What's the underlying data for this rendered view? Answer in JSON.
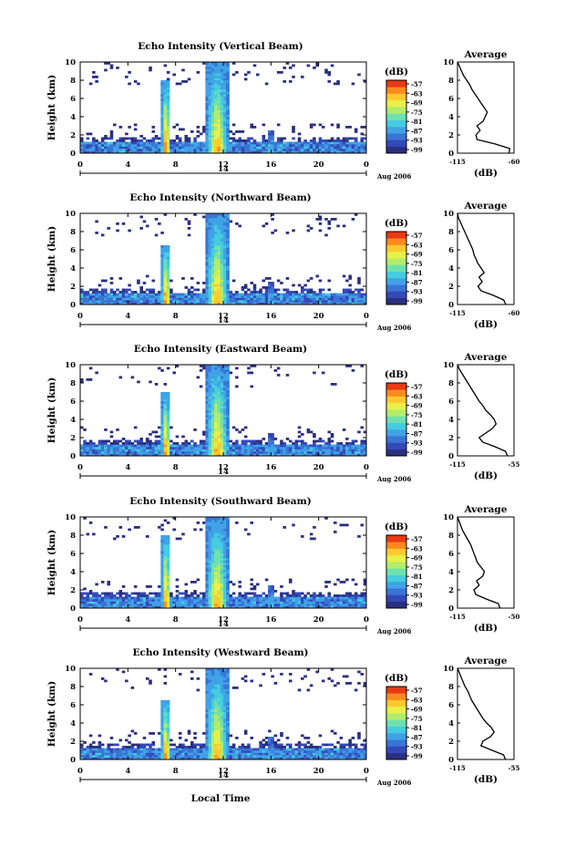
{
  "colorbar": {
    "unit_label": "(dB)",
    "ticks": [
      "-57",
      "-63",
      "-69",
      "-75",
      "-81",
      "-87",
      "-93",
      "-99"
    ],
    "colors": [
      "#2a2f7f",
      "#3448b8",
      "#3a74d6",
      "#3fa3e6",
      "#45cce0",
      "#6fe0b0",
      "#b2ec6c",
      "#e8f04a",
      "#ffc92e",
      "#ff8a1e",
      "#e83a14"
    ]
  },
  "xlabel": "Local Time",
  "panels": [
    {
      "title": "Echo Intensity (Vertical Beam)",
      "ylabel": "Height (km)",
      "xticks": [
        "0",
        "4",
        "8",
        "12",
        "16",
        "20",
        "0"
      ],
      "yticks": [
        "0",
        "2",
        "4",
        "6",
        "8",
        "10"
      ],
      "date_marker": "14",
      "date_label": "Aug 2006",
      "avg_title": "Average",
      "avg_xlabel": "(dB)",
      "avg_xticks": [
        "-115",
        "-60"
      ],
      "avg_yticks": [
        "0",
        "2",
        "4",
        "6",
        "8",
        "10"
      ]
    },
    {
      "title": "Echo Intensity (Northward Beam)",
      "ylabel": "Height (km)",
      "xticks": [
        "0",
        "4",
        "8",
        "12",
        "16",
        "20",
        "0"
      ],
      "yticks": [
        "0",
        "2",
        "4",
        "6",
        "8",
        "10"
      ],
      "date_marker": "14",
      "date_label": "Aug 2006",
      "avg_title": "Average",
      "avg_xlabel": "(dB)",
      "avg_xticks": [
        "-115",
        "-60"
      ],
      "avg_yticks": [
        "0",
        "2",
        "4",
        "6",
        "8",
        "10"
      ]
    },
    {
      "title": "Echo Intensity (Eastward Beam)",
      "ylabel": "Height (km)",
      "xticks": [
        "0",
        "4",
        "8",
        "12",
        "16",
        "20",
        "0"
      ],
      "yticks": [
        "0",
        "2",
        "4",
        "6",
        "8",
        "10"
      ],
      "date_marker": "14",
      "date_label": "Aug 2006",
      "avg_title": "Average",
      "avg_xlabel": "(dB)",
      "avg_xticks": [
        "-115",
        "-55"
      ],
      "avg_yticks": [
        "0",
        "2",
        "4",
        "6",
        "8",
        "10"
      ]
    },
    {
      "title": "Echo Intensity (Southward Beam)",
      "ylabel": "Height (km)",
      "xticks": [
        "0",
        "4",
        "8",
        "12",
        "16",
        "20",
        "0"
      ],
      "yticks": [
        "0",
        "2",
        "4",
        "6",
        "8",
        "10"
      ],
      "date_marker": "14",
      "date_label": "Aug 2006",
      "avg_title": "Average",
      "avg_xlabel": "(dB)",
      "avg_xticks": [
        "-115",
        "-50"
      ],
      "avg_yticks": [
        "0",
        "2",
        "4",
        "6",
        "8",
        "10"
      ]
    },
    {
      "title": "Echo Intensity (Westward Beam)",
      "ylabel": "Height (km)",
      "xticks": [
        "0",
        "4",
        "8",
        "12",
        "16",
        "20",
        "0"
      ],
      "yticks": [
        "0",
        "2",
        "4",
        "6",
        "8",
        "10"
      ],
      "date_marker": "14",
      "date_label": "Aug 2006",
      "avg_title": "Average",
      "avg_xlabel": "(dB)",
      "avg_xticks": [
        "-115",
        "-55"
      ],
      "avg_yticks": [
        "0",
        "2",
        "4",
        "6",
        "8",
        "10"
      ]
    }
  ],
  "chart_data": [
    {
      "type": "heatmap",
      "title": "Echo Intensity (Vertical Beam)",
      "xlabel": "",
      "ylabel": "Height (km)",
      "xlim": [
        0,
        24
      ],
      "ylim": [
        0,
        10
      ],
      "clim": [
        -99,
        -57
      ],
      "features": [
        {
          "x_hour": 7.2,
          "top_km": 8.0,
          "peak_db": -57
        },
        {
          "x_hour": 11.5,
          "top_km": 10.0,
          "peak_db": -63
        },
        {
          "x_hour": 16.0,
          "top_km": 2.5,
          "peak_db": -81
        }
      ],
      "average_profile": {
        "xlim": [
          -115,
          -60
        ],
        "height_km": [
          0,
          0.5,
          1,
          1.5,
          2,
          2.5,
          3,
          3.5,
          4,
          4.5,
          5,
          5.5,
          6,
          6.5,
          7,
          7.5,
          8,
          8.5,
          9,
          9.5,
          10
        ],
        "db": [
          -65,
          -64,
          -78,
          -96,
          -97,
          -93,
          -96,
          -90,
          -88,
          -86,
          -89,
          -92,
          -95,
          -98,
          -101,
          -103,
          -106,
          -109,
          -111,
          -113,
          -115
        ]
      }
    },
    {
      "type": "heatmap",
      "title": "Echo Intensity (Northward Beam)",
      "xlabel": "",
      "ylabel": "Height (km)",
      "xlim": [
        0,
        24
      ],
      "ylim": [
        0,
        10
      ],
      "clim": [
        -99,
        -57
      ],
      "features": [
        {
          "x_hour": 7.2,
          "top_km": 6.5,
          "peak_db": -57
        },
        {
          "x_hour": 11.5,
          "top_km": 10.0,
          "peak_db": -63
        },
        {
          "x_hour": 16.0,
          "top_km": 2.5,
          "peak_db": -81
        }
      ],
      "average_profile": {
        "xlim": [
          -115,
          -60
        ],
        "height_km": [
          0,
          0.5,
          1,
          1.5,
          2,
          2.5,
          3,
          3.5,
          4,
          4.5,
          5,
          5.5,
          6,
          6.5,
          7,
          7.5,
          8,
          8.5,
          9,
          9.5,
          10
        ],
        "db": [
          -68,
          -70,
          -80,
          -92,
          -95,
          -91,
          -94,
          -89,
          -92,
          -95,
          -97,
          -99,
          -100,
          -102,
          -104,
          -106,
          -108,
          -110,
          -112,
          -114,
          -115
        ]
      }
    },
    {
      "type": "heatmap",
      "title": "Echo Intensity (Eastward Beam)",
      "xlabel": "",
      "ylabel": "Height (km)",
      "xlim": [
        0,
        24
      ],
      "ylim": [
        0,
        10
      ],
      "clim": [
        -99,
        -57
      ],
      "features": [
        {
          "x_hour": 7.2,
          "top_km": 7.0,
          "peak_db": -57
        },
        {
          "x_hour": 11.5,
          "top_km": 10.0,
          "peak_db": -63
        },
        {
          "x_hour": 16.0,
          "top_km": 2.5,
          "peak_db": -81
        }
      ],
      "average_profile": {
        "xlim": [
          -115,
          -55
        ],
        "height_km": [
          0,
          0.5,
          1,
          1.5,
          2,
          2.5,
          3,
          3.5,
          4,
          4.5,
          5,
          5.5,
          6,
          6.5,
          7,
          7.5,
          8,
          8.5,
          9,
          9.5,
          10
        ],
        "db": [
          -62,
          -64,
          -75,
          -88,
          -92,
          -85,
          -78,
          -74,
          -76,
          -80,
          -85,
          -88,
          -92,
          -95,
          -98,
          -101,
          -104,
          -107,
          -110,
          -113,
          -115
        ]
      }
    },
    {
      "type": "heatmap",
      "title": "Echo Intensity (Southward Beam)",
      "xlabel": "",
      "ylabel": "Height (km)",
      "xlim": [
        0,
        24
      ],
      "ylim": [
        0,
        10
      ],
      "clim": [
        -99,
        -57
      ],
      "features": [
        {
          "x_hour": 7.2,
          "top_km": 8.0,
          "peak_db": -57
        },
        {
          "x_hour": 11.5,
          "top_km": 10.0,
          "peak_db": -63
        },
        {
          "x_hour": 16.0,
          "top_km": 2.5,
          "peak_db": -81
        }
      ],
      "average_profile": {
        "xlim": [
          -115,
          -50
        ],
        "height_km": [
          0,
          0.5,
          1,
          1.5,
          2,
          2.5,
          3,
          3.5,
          4,
          4.5,
          5,
          5.5,
          6,
          6.5,
          7,
          7.5,
          8,
          8.5,
          9,
          9.5,
          10
        ],
        "db": [
          -66,
          -68,
          -82,
          -94,
          -96,
          -90,
          -93,
          -86,
          -84,
          -88,
          -92,
          -94,
          -96,
          -98,
          -100,
          -103,
          -106,
          -109,
          -111,
          -113,
          -115
        ]
      }
    },
    {
      "type": "heatmap",
      "title": "Echo Intensity (Westward Beam)",
      "xlabel": "Local Time",
      "ylabel": "Height (km)",
      "xlim": [
        0,
        24
      ],
      "ylim": [
        0,
        10
      ],
      "clim": [
        -99,
        -57
      ],
      "features": [
        {
          "x_hour": 7.2,
          "top_km": 6.5,
          "peak_db": -57
        },
        {
          "x_hour": 11.5,
          "top_km": 10.0,
          "peak_db": -63
        },
        {
          "x_hour": 16.0,
          "top_km": 2.5,
          "peak_db": -81
        }
      ],
      "average_profile": {
        "xlim": [
          -115,
          -55
        ],
        "height_km": [
          0,
          0.5,
          1,
          1.5,
          2,
          2.5,
          3,
          3.5,
          4,
          4.5,
          5,
          5.5,
          6,
          6.5,
          7,
          7.5,
          8,
          8.5,
          9,
          9.5,
          10
        ],
        "db": [
          -64,
          -66,
          -78,
          -90,
          -88,
          -80,
          -76,
          -79,
          -84,
          -88,
          -91,
          -94,
          -97,
          -100,
          -102,
          -104,
          -107,
          -109,
          -111,
          -113,
          -115
        ]
      }
    }
  ]
}
